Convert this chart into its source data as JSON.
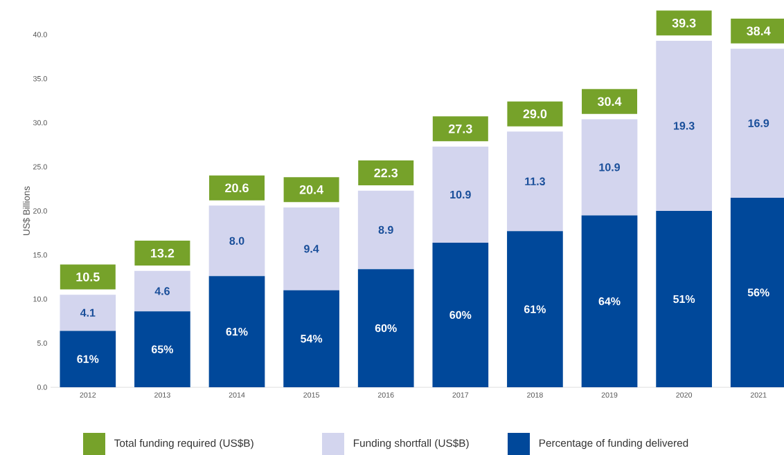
{
  "chart_data": {
    "type": "bar",
    "stacked": true,
    "categories": [
      "2012",
      "2013",
      "2014",
      "2015",
      "2016",
      "2017",
      "2018",
      "2019",
      "2020",
      "2021"
    ],
    "ylabel": "US$ Billions",
    "ylim": [
      0,
      40
    ],
    "yticks": [
      {
        "value": 0,
        "label": "0.0"
      },
      {
        "value": 5,
        "label": "5.0"
      },
      {
        "value": 10,
        "label": "10.0"
      },
      {
        "value": 15,
        "label": "15.0"
      },
      {
        "value": 20,
        "label": "20.0"
      },
      {
        "value": 25,
        "label": "25.0"
      },
      {
        "value": 30,
        "label": "30.0"
      },
      {
        "value": 35,
        "label": "35.0"
      },
      {
        "value": 40,
        "label": "40.0"
      }
    ],
    "legend": "bottom",
    "series": [
      {
        "name": "Percentage of funding delivered",
        "color": "#00489a",
        "values": [
          6.4,
          8.6,
          12.6,
          11.0,
          13.4,
          16.4,
          17.7,
          19.5,
          20.0,
          21.5
        ]
      },
      {
        "name": "Funding shortfall (US$B)",
        "color": "#d3d5ee",
        "values": [
          4.1,
          4.6,
          8.0,
          9.4,
          8.9,
          10.9,
          11.3,
          10.9,
          19.3,
          16.9
        ],
        "value_labels": [
          "4.1",
          "4.6",
          "8.0",
          "9.4",
          "8.9",
          "10.9",
          "11.3",
          "10.9",
          "19.3",
          "16.9"
        ]
      }
    ],
    "totals": [
      "10.5",
      "13.2",
      "20.6",
      "20.4",
      "22.3",
      "27.3",
      "29.0",
      "30.4",
      "39.3",
      "38.4"
    ],
    "annotations": [
      "Total funding required (US$B)",
      "61%",
      "65%",
      "61%",
      "54%",
      "60%",
      "60%",
      "61%",
      "64%",
      "51%",
      "56%"
    ]
  }
}
